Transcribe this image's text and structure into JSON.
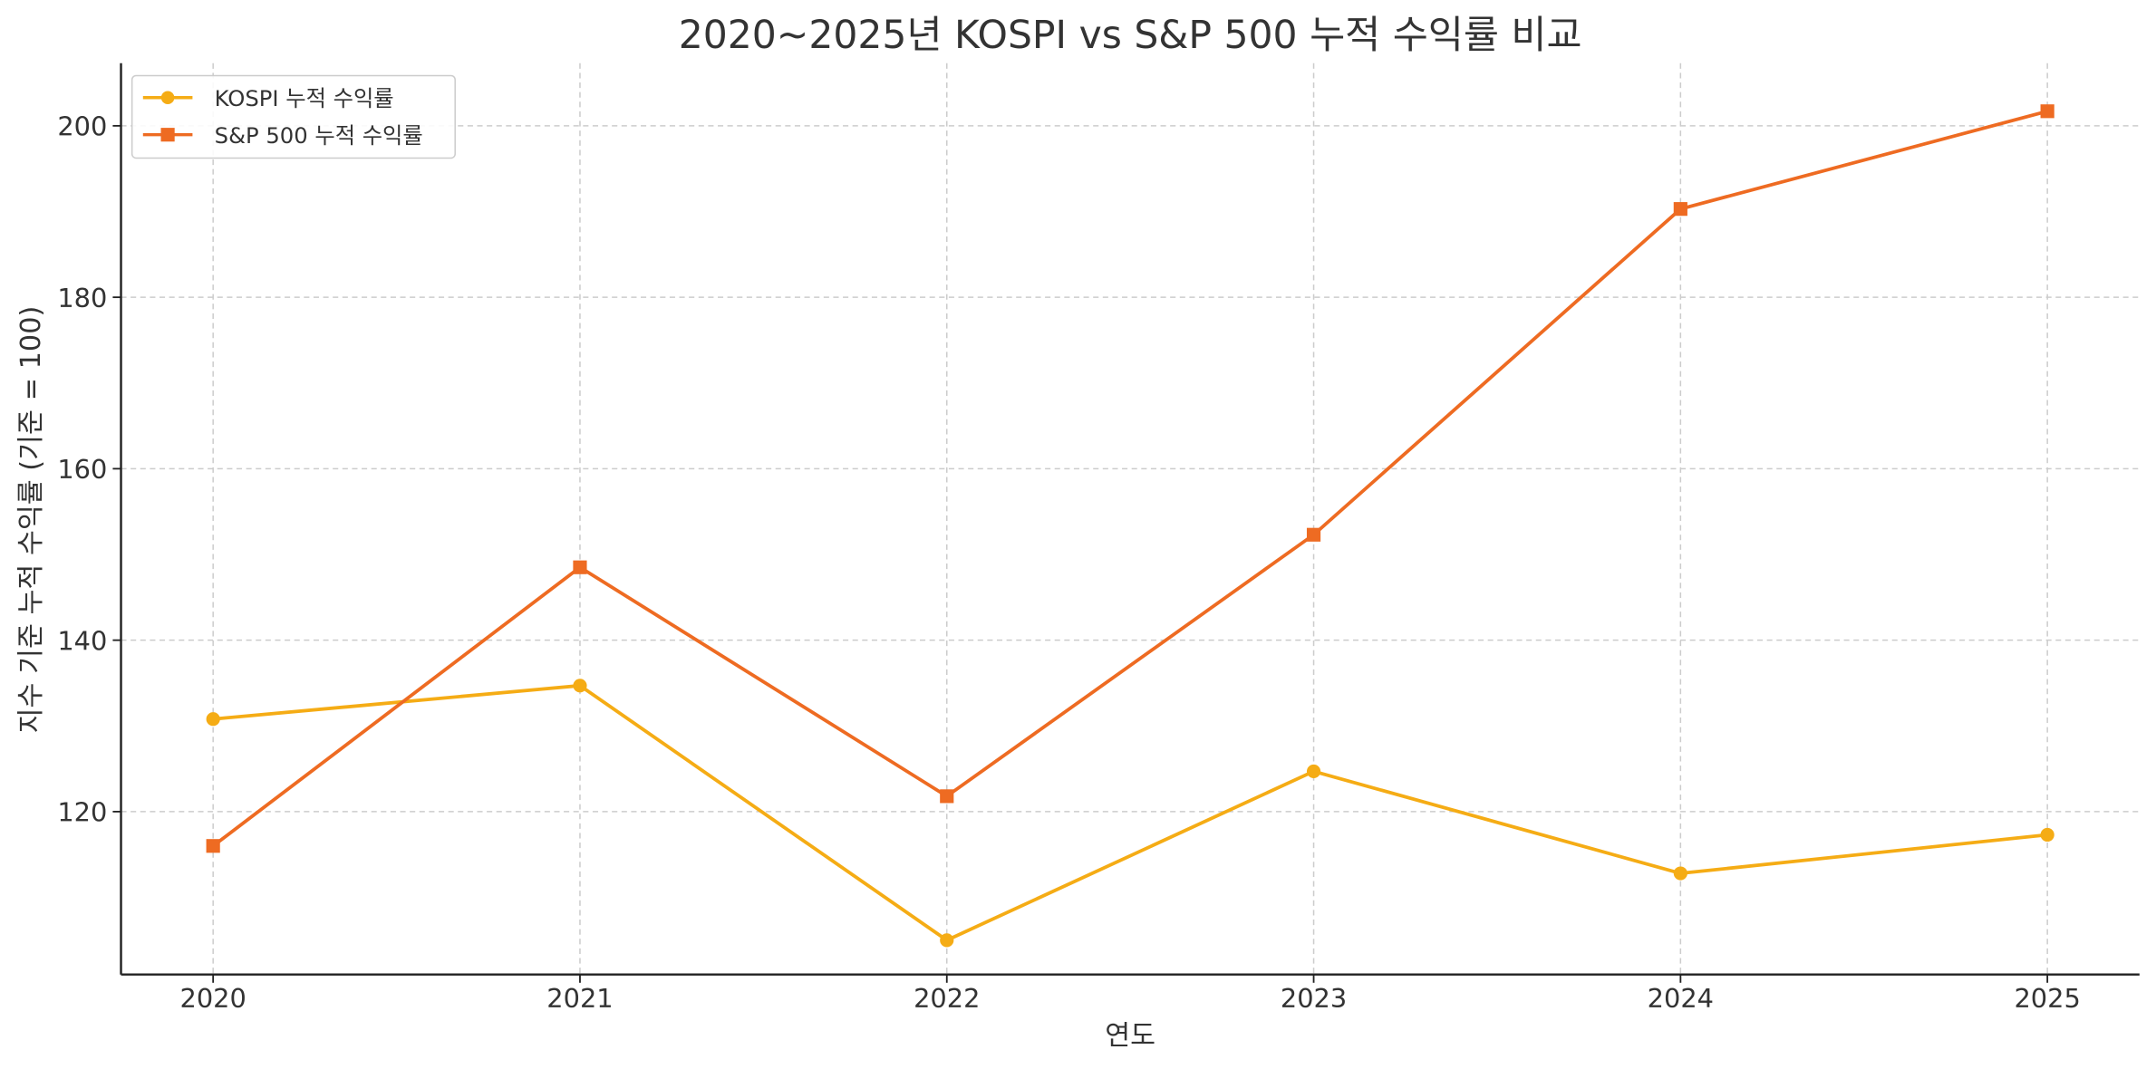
{
  "chart_data": {
    "type": "line",
    "title": "2020~2025년 KOSPI vs S&P 500 누적 수익률 비교",
    "xlabel": "연도",
    "ylabel": "지수 기준 누적 수익률 (기준 = 100)",
    "categories": [
      "2020",
      "2021",
      "2022",
      "2023",
      "2024",
      "2025"
    ],
    "yticks": [
      120,
      140,
      160,
      180,
      200
    ],
    "ylim": [
      101,
      207.3
    ],
    "grid": true,
    "legend_position": "top-left",
    "series": [
      {
        "name": "KOSPI 누적 수익률",
        "marker": "circle",
        "color": "#f5ac15",
        "values": [
          130.8,
          134.7,
          105.0,
          124.7,
          112.8,
          117.3
        ]
      },
      {
        "name": "S&P 500 누적 수익률",
        "marker": "square",
        "color": "#ee6b22",
        "values": [
          116.0,
          148.5,
          121.8,
          152.3,
          190.3,
          201.7
        ]
      }
    ]
  }
}
